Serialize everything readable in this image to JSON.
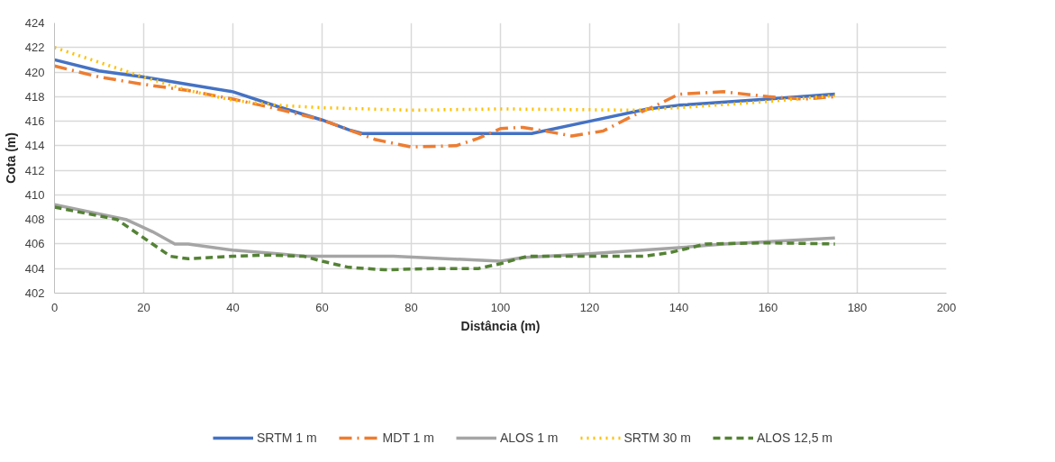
{
  "chart_data": {
    "type": "line",
    "xlabel": "Distância (m)",
    "ylabel": "Cota (m)",
    "xlim": [
      0,
      200
    ],
    "xticks": [
      0,
      20,
      40,
      60,
      80,
      100,
      120,
      140,
      160,
      180,
      200
    ],
    "ylim": [
      402,
      424
    ],
    "yticks": [
      402,
      404,
      406,
      408,
      410,
      412,
      414,
      416,
      418,
      420,
      422,
      424
    ],
    "grid": true,
    "legend": "bottom",
    "marker": "none",
    "series": [
      {
        "name": "SRTM 1 m",
        "color": "#4472c4",
        "line_style": "solid",
        "x": [
          0,
          10,
          20,
          30,
          40,
          50,
          60,
          66,
          69,
          80,
          100,
          107,
          120,
          133,
          140,
          160,
          175
        ],
        "values": [
          421,
          420.1,
          419.6,
          419,
          418.4,
          417.2,
          416.1,
          415.3,
          415,
          415,
          415,
          415,
          416,
          417,
          417.3,
          417.8,
          418.2
        ]
      },
      {
        "name": "MDT 1 m",
        "color": "#ed7d31",
        "line_style": "dashdot",
        "x": [
          0,
          10,
          20,
          30,
          40,
          50,
          60,
          66,
          72,
          80,
          90,
          95,
          100,
          105,
          110,
          116,
          123,
          130,
          135,
          140,
          150,
          160,
          168,
          175
        ],
        "values": [
          420.5,
          419.6,
          419,
          418.5,
          417.8,
          417,
          416.1,
          415.3,
          414.5,
          413.9,
          414,
          414.6,
          415.4,
          415.5,
          415.2,
          414.8,
          415.2,
          416.5,
          417.3,
          418.2,
          418.4,
          418,
          417.8,
          418
        ]
      },
      {
        "name": "ALOS 1 m",
        "color": "#a5a5a5",
        "line_style": "solid",
        "x": [
          0,
          16,
          22,
          27,
          30,
          40,
          50,
          56,
          76,
          100,
          105,
          120,
          140,
          150,
          175
        ],
        "values": [
          409.2,
          408,
          407,
          406,
          406,
          405.5,
          405.2,
          405,
          405,
          404.6,
          404.9,
          405.2,
          405.7,
          406,
          406.5
        ]
      },
      {
        "name": "SRTM 30 m",
        "color": "#ffc000",
        "line_style": "dotted",
        "x": [
          0,
          10,
          20,
          30,
          40,
          50,
          60,
          80,
          100,
          130,
          140,
          160,
          175
        ],
        "values": [
          422,
          420.8,
          419.6,
          418.5,
          417.7,
          417.3,
          417.1,
          416.9,
          417,
          416.9,
          417.1,
          417.6,
          418.1
        ]
      },
      {
        "name": "ALOS 12,5 m",
        "color": "#548235",
        "line_style": "dashed",
        "x": [
          0,
          14,
          20,
          26,
          30,
          40,
          48,
          56,
          60,
          66,
          74,
          85,
          95,
          100,
          106,
          120,
          132,
          138,
          146,
          160,
          175
        ],
        "values": [
          409,
          408,
          406.5,
          405,
          404.8,
          405,
          405.1,
          405,
          404.6,
          404.1,
          403.9,
          404,
          404,
          404.4,
          405,
          405,
          405,
          405.3,
          406,
          406.1,
          406
        ]
      }
    ]
  }
}
